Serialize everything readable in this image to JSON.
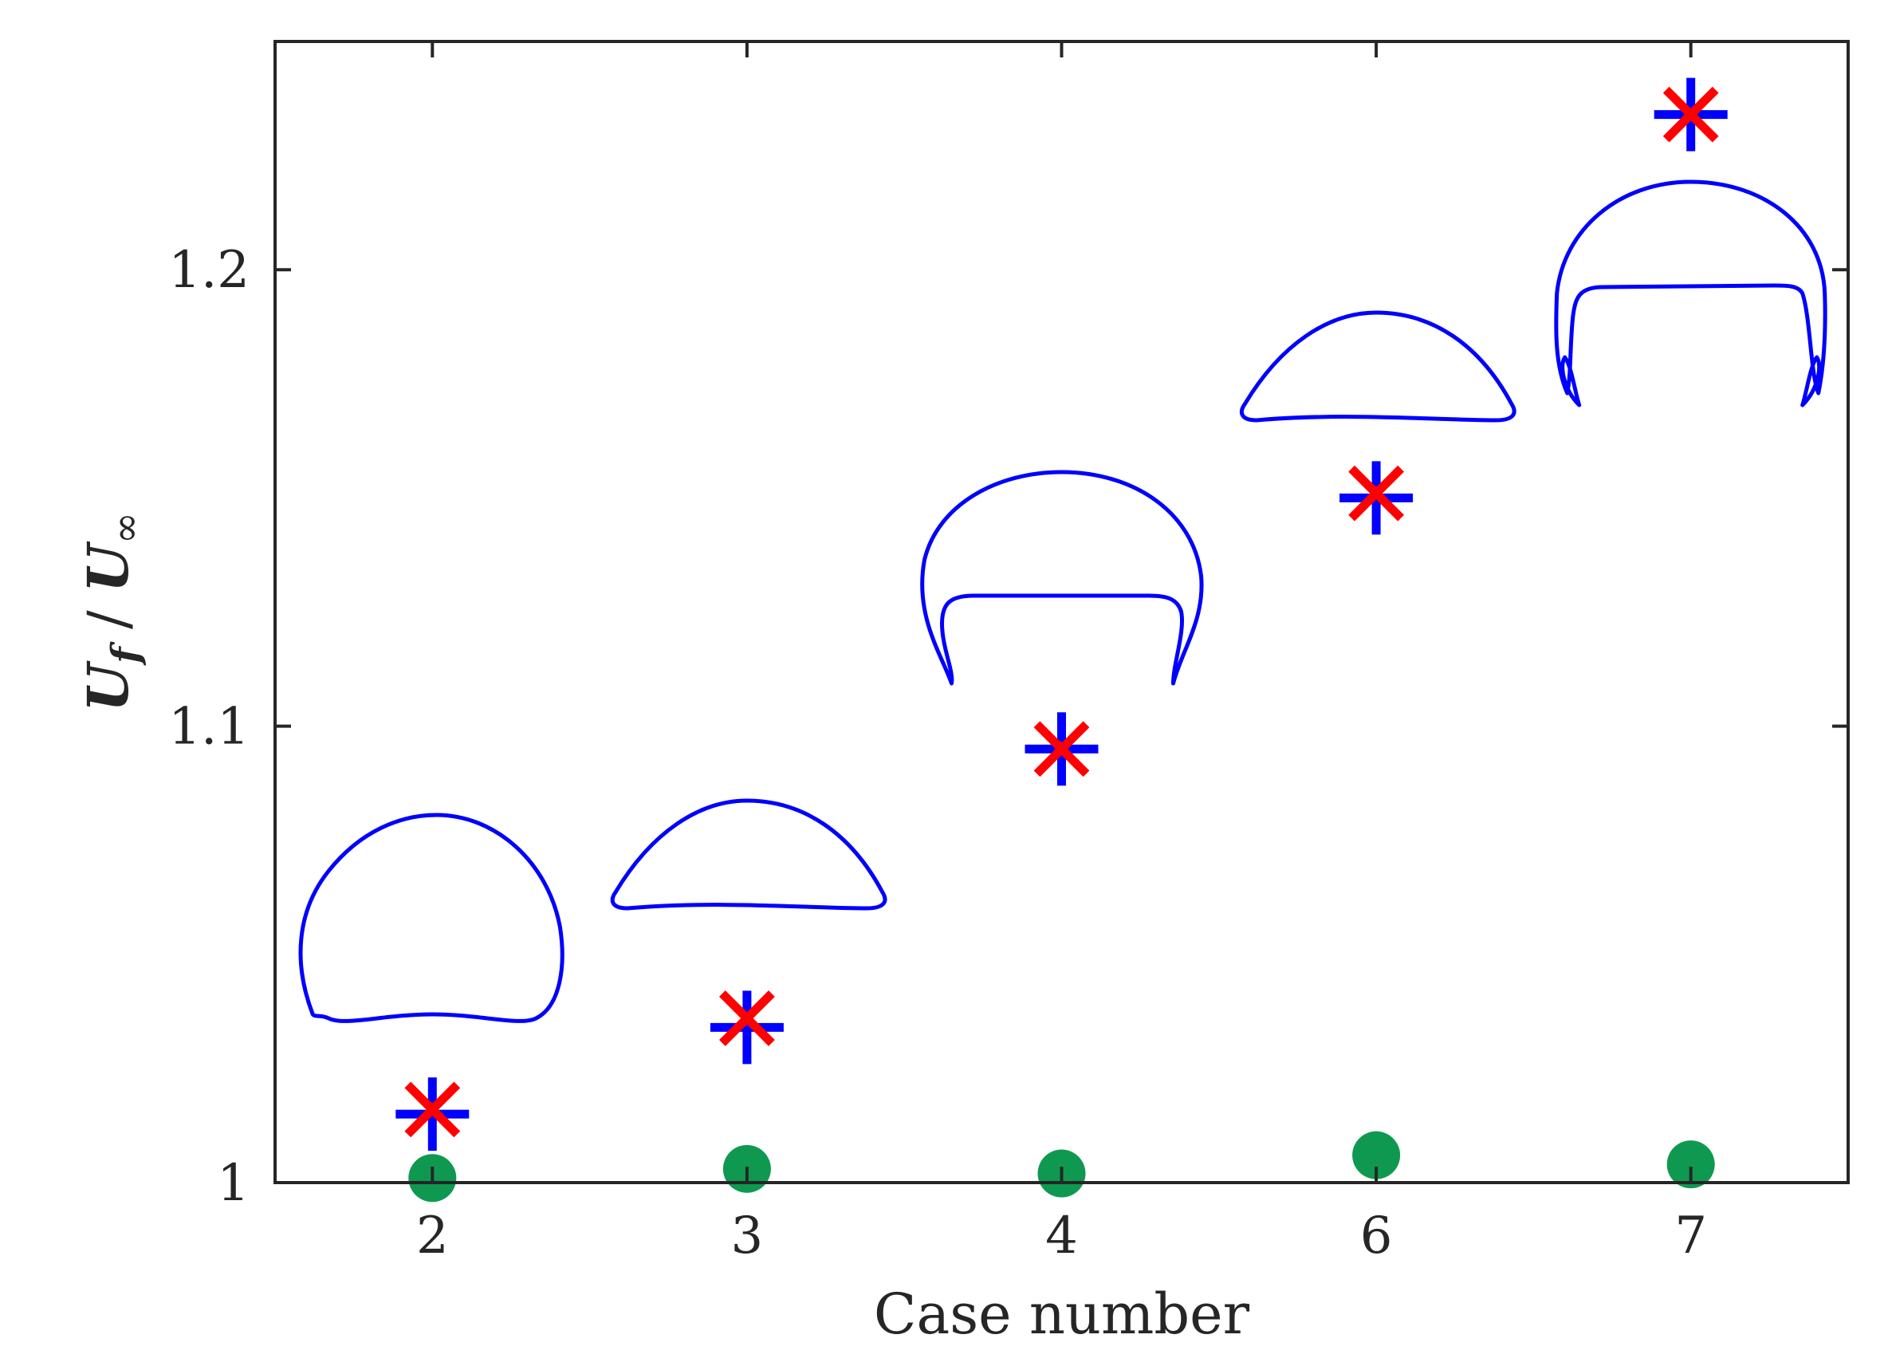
{
  "chart_data": {
    "type": "scatter",
    "xlabel": "Case number",
    "ylabel": "U_f / U_∞",
    "ylabel_parts": {
      "u1": "U",
      "sub": "f",
      "slash": " / ",
      "u2": "U",
      "inf": "∞"
    },
    "categories": [
      "2",
      "3",
      "4",
      "6",
      "7"
    ],
    "yticks": [
      "1",
      "1.1",
      "1.2"
    ],
    "ylim": [
      1.0,
      1.25
    ],
    "grid": false,
    "legend": "none",
    "series": [
      {
        "marker": "plus",
        "color": "#0000ff",
        "values": [
          1.015,
          1.034,
          1.095,
          1.15,
          1.234
        ]
      },
      {
        "marker": "x",
        "color": "#ff0000",
        "values": [
          1.016,
          1.036,
          1.095,
          1.151,
          1.234
        ]
      },
      {
        "marker": "filled-circle",
        "color": "#0f9950",
        "values": [
          1.001,
          1.003,
          1.002,
          1.006,
          1.004
        ]
      }
    ],
    "insets": [
      {
        "case": "2",
        "shape": "rounded-cap-flat-base"
      },
      {
        "case": "3",
        "shape": "flat-cap"
      },
      {
        "case": "4",
        "shape": "skirted-cap"
      },
      {
        "case": "6",
        "shape": "flat-cap"
      },
      {
        "case": "7",
        "shape": "skirted-cap-with-satellites"
      }
    ],
    "inset_color": "#0000ff"
  }
}
